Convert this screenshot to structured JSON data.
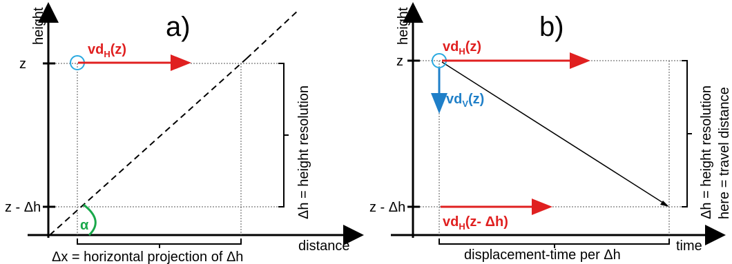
{
  "panel_a": {
    "title": "a)",
    "y_axis_label": "height",
    "x_axis_label": "distance",
    "tick_z": "z",
    "tick_z_minus_dh": "z - Δh",
    "velocity_label_main": "vd",
    "velocity_label_sub": "H",
    "velocity_label_arg": "(z)",
    "angle_label": "α",
    "side_label": "Δh = height resolution",
    "bottom_label": "Δx = horizontal projection of Δh"
  },
  "panel_b": {
    "title": "b)",
    "y_axis_label": "height",
    "x_axis_label": "time",
    "tick_z": "z",
    "tick_z_minus_dh": "z - Δh",
    "top_velocity_main": "vd",
    "top_velocity_sub": "H",
    "top_velocity_arg": "(z)",
    "vertical_velocity_main": "vd",
    "vertical_velocity_sub": "V",
    "vertical_velocity_arg": "(z)",
    "bottom_velocity_main": "vd",
    "bottom_velocity_sub": "H",
    "bottom_velocity_arg": "(z- Δh)",
    "side_label_1": "Δh = height resolution",
    "side_label_2": "here = travel distance",
    "bottom_label": "displacement-time per Δh"
  },
  "colors": {
    "red": "#e02020",
    "blue": "#1f7fc8",
    "green": "#19a84a",
    "circle": "#29a9e0"
  }
}
